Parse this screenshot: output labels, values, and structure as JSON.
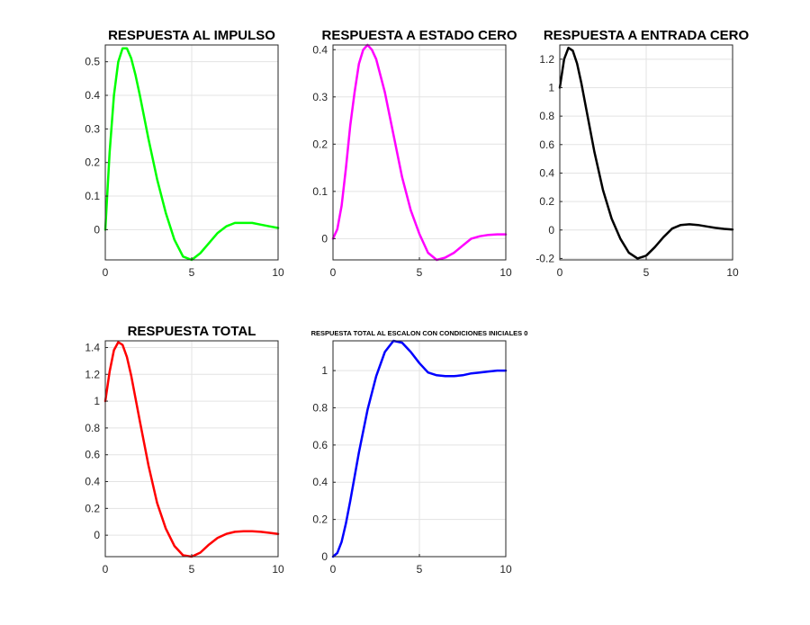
{
  "figure": {
    "background": "#ffffff"
  },
  "chart_data": [
    {
      "id": "impulso",
      "type": "line",
      "title": "RESPUESTA AL IMPULSO",
      "color": "#00ff00",
      "xlim": [
        0,
        10
      ],
      "ylim": [
        -0.09,
        0.55
      ],
      "xticks": [
        0,
        5,
        10
      ],
      "yticks": [
        0,
        0.1,
        0.2,
        0.3,
        0.4,
        0.5
      ],
      "grid": true,
      "series": [
        {
          "x": [
            0,
            0.25,
            0.5,
            0.75,
            1,
            1.25,
            1.5,
            1.75,
            2,
            2.5,
            3,
            3.5,
            4,
            4.5,
            5,
            5.5,
            6,
            6.5,
            7,
            7.5,
            8,
            8.5,
            9,
            9.5,
            10
          ],
          "y": [
            0,
            0.23,
            0.4,
            0.5,
            0.54,
            0.54,
            0.51,
            0.46,
            0.4,
            0.27,
            0.15,
            0.05,
            -0.03,
            -0.08,
            -0.09,
            -0.07,
            -0.04,
            -0.01,
            0.01,
            0.02,
            0.02,
            0.02,
            0.015,
            0.01,
            0.005
          ]
        }
      ]
    },
    {
      "id": "estado-cero",
      "type": "line",
      "title": "RESPUESTA A ESTADO CERO",
      "color": "#ff00ff",
      "xlim": [
        0,
        10
      ],
      "ylim": [
        -0.045,
        0.41
      ],
      "xticks": [
        0,
        5,
        10
      ],
      "yticks": [
        0,
        0.1,
        0.2,
        0.3,
        0.4
      ],
      "grid": true,
      "series": [
        {
          "x": [
            0,
            0.25,
            0.5,
            0.75,
            1,
            1.25,
            1.5,
            1.75,
            2,
            2.25,
            2.5,
            3,
            3.5,
            4,
            4.5,
            5,
            5.5,
            6,
            6.5,
            7,
            7.5,
            8,
            8.5,
            9,
            9.5,
            10
          ],
          "y": [
            0,
            0.02,
            0.07,
            0.15,
            0.24,
            0.31,
            0.37,
            0.4,
            0.41,
            0.4,
            0.38,
            0.31,
            0.22,
            0.13,
            0.06,
            0.01,
            -0.03,
            -0.045,
            -0.04,
            -0.03,
            -0.015,
            0,
            0.005,
            0.008,
            0.009,
            0.009
          ]
        }
      ]
    },
    {
      "id": "entrada-cero",
      "type": "line",
      "title": "RESPUESTA A ENTRADA CERO",
      "color": "#000000",
      "xlim": [
        0,
        10
      ],
      "ylim": [
        -0.21,
        1.3
      ],
      "xticks": [
        0,
        5,
        10
      ],
      "yticks": [
        -0.2,
        0,
        0.2,
        0.4,
        0.6,
        0.8,
        1,
        1.2
      ],
      "grid": true,
      "series": [
        {
          "x": [
            0,
            0.25,
            0.5,
            0.75,
            1,
            1.25,
            1.5,
            2,
            2.5,
            3,
            3.5,
            4,
            4.5,
            5,
            5.5,
            6,
            6.5,
            7,
            7.5,
            8,
            8.5,
            9,
            9.5,
            10
          ],
          "y": [
            1,
            1.2,
            1.28,
            1.26,
            1.17,
            1.03,
            0.87,
            0.55,
            0.28,
            0.08,
            -0.06,
            -0.16,
            -0.2,
            -0.18,
            -0.12,
            -0.05,
            0.01,
            0.035,
            0.04,
            0.035,
            0.025,
            0.015,
            0.008,
            0.003
          ]
        }
      ]
    },
    {
      "id": "total",
      "type": "line",
      "title": "RESPUESTA TOTAL",
      "color": "#ff0000",
      "xlim": [
        0,
        10
      ],
      "ylim": [
        -0.16,
        1.45
      ],
      "xticks": [
        0,
        5,
        10
      ],
      "yticks": [
        0,
        0.2,
        0.4,
        0.6,
        0.8,
        1,
        1.2,
        1.4
      ],
      "grid": true,
      "series": [
        {
          "x": [
            0,
            0.25,
            0.5,
            0.75,
            1,
            1.25,
            1.5,
            2,
            2.5,
            3,
            3.5,
            4,
            4.5,
            5,
            5.5,
            6,
            6.5,
            7,
            7.5,
            8,
            8.5,
            9,
            9.5,
            10
          ],
          "y": [
            1,
            1.22,
            1.38,
            1.44,
            1.42,
            1.33,
            1.19,
            0.85,
            0.52,
            0.24,
            0.05,
            -0.08,
            -0.15,
            -0.16,
            -0.13,
            -0.07,
            -0.02,
            0.01,
            0.025,
            0.03,
            0.03,
            0.025,
            0.018,
            0.01
          ]
        }
      ]
    },
    {
      "id": "escalon",
      "type": "line",
      "title": "RESPUESTA TOTAL AL ESCALON CON CONDICIONES INICIALES 0",
      "color": "#0000ff",
      "xlim": [
        0,
        10
      ],
      "ylim": [
        0,
        1.16
      ],
      "xticks": [
        0,
        5,
        10
      ],
      "yticks": [
        0,
        0.2,
        0.4,
        0.6,
        0.8,
        1
      ],
      "grid": true,
      "series": [
        {
          "x": [
            0,
            0.25,
            0.5,
            0.75,
            1,
            1.5,
            2,
            2.5,
            3,
            3.5,
            4,
            4.5,
            5,
            5.5,
            6,
            6.5,
            7,
            7.5,
            8,
            8.5,
            9,
            9.5,
            10
          ],
          "y": [
            0,
            0.02,
            0.08,
            0.18,
            0.3,
            0.56,
            0.79,
            0.97,
            1.1,
            1.16,
            1.15,
            1.1,
            1.04,
            0.99,
            0.975,
            0.97,
            0.97,
            0.975,
            0.985,
            0.99,
            0.995,
            1.0,
            1.0
          ]
        }
      ]
    }
  ]
}
